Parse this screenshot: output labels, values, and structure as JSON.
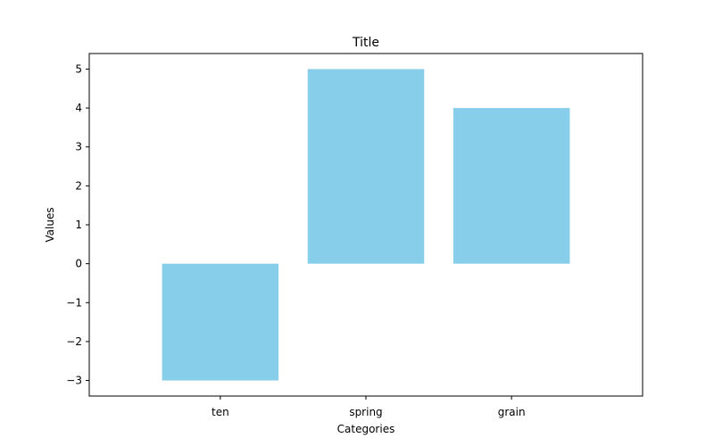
{
  "chart_data": {
    "type": "bar",
    "title": "Title",
    "xlabel": "Categories",
    "ylabel": "Values",
    "categories": [
      "ten",
      "spring",
      "grain"
    ],
    "values": [
      -3,
      5,
      4
    ],
    "ylim": [
      -3.4,
      5.4
    ],
    "yticks": [
      -3,
      -2,
      -1,
      0,
      1,
      2,
      3,
      4,
      5
    ],
    "ytick_labels": [
      "−3",
      "−2",
      "−1",
      "0",
      "1",
      "2",
      "3",
      "4",
      "5"
    ],
    "bar_color": "#87CEEB",
    "grid": false
  }
}
